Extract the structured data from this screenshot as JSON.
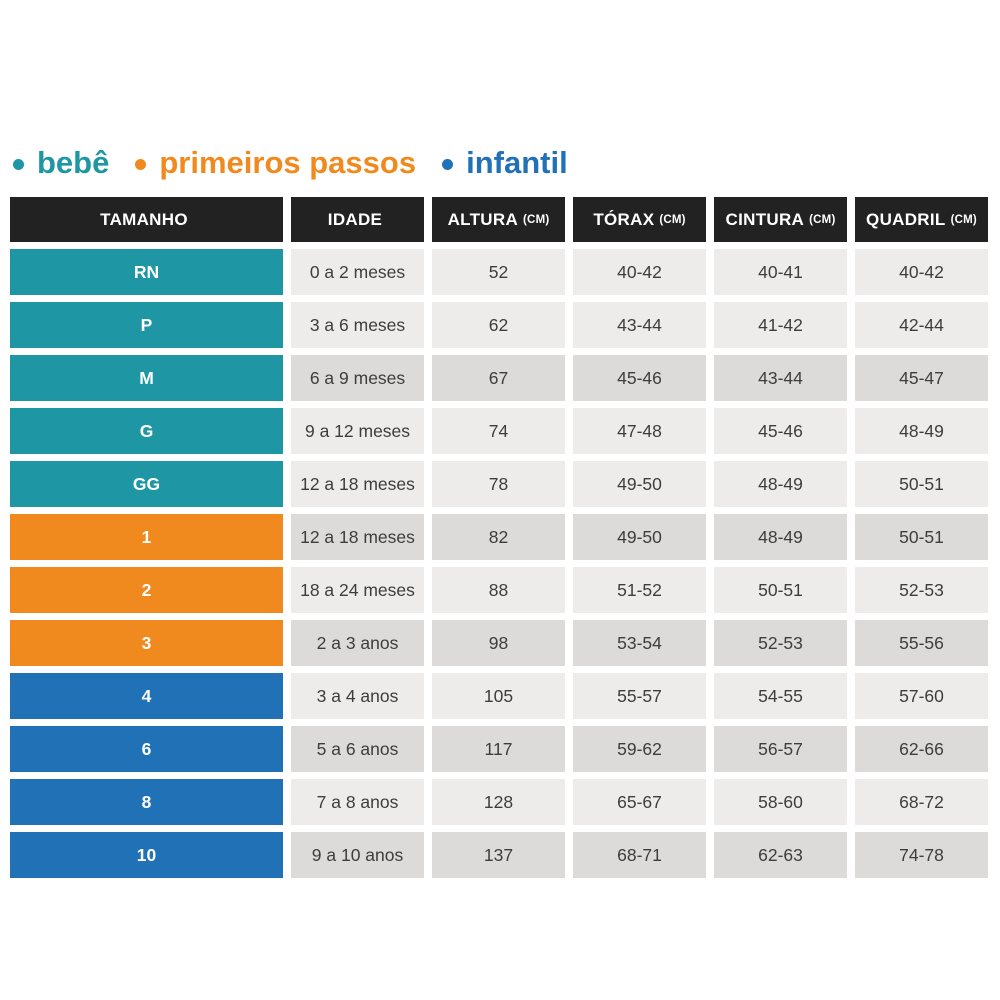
{
  "colors": {
    "teal": "#1f96a4",
    "orange": "#f08a1e",
    "blue": "#2171b7",
    "header_bg": "#232222",
    "row_light": "#edecea",
    "row_dark": "#dcdbd9",
    "cell_text": "#3d3d3c",
    "page_bg": "#ffffff"
  },
  "chart_data": {
    "type": "table",
    "title": "",
    "legend": [
      {
        "label": "bebê",
        "color": "#1f96a4"
      },
      {
        "label": "primeiros passos",
        "color": "#f08a1e"
      },
      {
        "label": "infantil",
        "color": "#2171b7"
      }
    ],
    "columns": [
      {
        "label": "TAMANHO",
        "unit": ""
      },
      {
        "label": "IDADE",
        "unit": ""
      },
      {
        "label": "ALTURA",
        "unit": "(CM)"
      },
      {
        "label": "TÓRAX",
        "unit": "(CM)"
      },
      {
        "label": "CINTURA",
        "unit": "(CM)"
      },
      {
        "label": "QUADRIL",
        "unit": "(CM)"
      }
    ],
    "rows": [
      {
        "tamanho": "RN",
        "group": "bebê",
        "idade": "0 a 2 meses",
        "altura_cm": "52",
        "torax_cm": "40-42",
        "cintura_cm": "40-41",
        "quadril_cm": "40-42",
        "shade": "light"
      },
      {
        "tamanho": "P",
        "group": "bebê",
        "idade": "3 a 6 meses",
        "altura_cm": "62",
        "torax_cm": "43-44",
        "cintura_cm": "41-42",
        "quadril_cm": "42-44",
        "shade": "light"
      },
      {
        "tamanho": "M",
        "group": "bebê",
        "idade": "6 a 9 meses",
        "altura_cm": "67",
        "torax_cm": "45-46",
        "cintura_cm": "43-44",
        "quadril_cm": "45-47",
        "shade": "dark"
      },
      {
        "tamanho": "G",
        "group": "bebê",
        "idade": "9 a 12 meses",
        "altura_cm": "74",
        "torax_cm": "47-48",
        "cintura_cm": "45-46",
        "quadril_cm": "48-49",
        "shade": "light"
      },
      {
        "tamanho": "GG",
        "group": "bebê",
        "idade": "12 a 18 meses",
        "altura_cm": "78",
        "torax_cm": "49-50",
        "cintura_cm": "48-49",
        "quadril_cm": "50-51",
        "shade": "light"
      },
      {
        "tamanho": "1",
        "group": "primeiros passos",
        "idade": "12 a 18 meses",
        "altura_cm": "82",
        "torax_cm": "49-50",
        "cintura_cm": "48-49",
        "quadril_cm": "50-51",
        "shade": "dark"
      },
      {
        "tamanho": "2",
        "group": "primeiros passos",
        "idade": "18 a 24 meses",
        "altura_cm": "88",
        "torax_cm": "51-52",
        "cintura_cm": "50-51",
        "quadril_cm": "52-53",
        "shade": "light"
      },
      {
        "tamanho": "3",
        "group": "primeiros passos",
        "idade": "2 a 3 anos",
        "altura_cm": "98",
        "torax_cm": "53-54",
        "cintura_cm": "52-53",
        "quadril_cm": "55-56",
        "shade": "dark"
      },
      {
        "tamanho": "4",
        "group": "infantil",
        "idade": "3 a 4 anos",
        "altura_cm": "105",
        "torax_cm": "55-57",
        "cintura_cm": "54-55",
        "quadril_cm": "57-60",
        "shade": "light"
      },
      {
        "tamanho": "6",
        "group": "infantil",
        "idade": "5 a 6 anos",
        "altura_cm": "117",
        "torax_cm": "59-62",
        "cintura_cm": "56-57",
        "quadril_cm": "62-66",
        "shade": "dark"
      },
      {
        "tamanho": "8",
        "group": "infantil",
        "idade": "7 a 8 anos",
        "altura_cm": "128",
        "torax_cm": "65-67",
        "cintura_cm": "58-60",
        "quadril_cm": "68-72",
        "shade": "light"
      },
      {
        "tamanho": "10",
        "group": "infantil",
        "idade": "9 a 10 anos",
        "altura_cm": "137",
        "torax_cm": "68-71",
        "cintura_cm": "62-63",
        "quadril_cm": "74-78",
        "shade": "dark"
      }
    ]
  }
}
